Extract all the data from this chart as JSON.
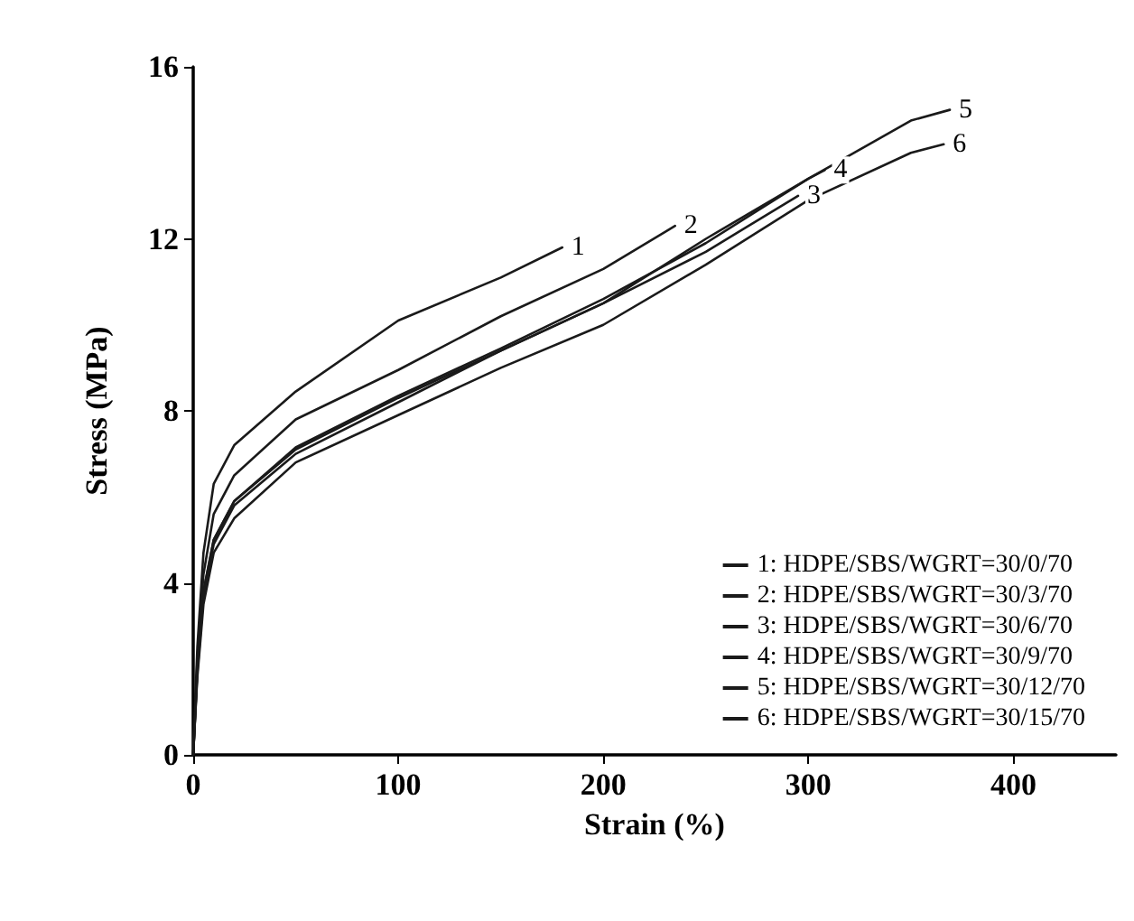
{
  "chart_data": {
    "type": "line",
    "xlabel": "Strain (%)",
    "ylabel": "Stress (MPa)",
    "xlim": [
      0,
      450
    ],
    "ylim": [
      0,
      16
    ],
    "xticks": [
      0,
      100,
      200,
      300,
      400
    ],
    "yticks": [
      0,
      4,
      8,
      12,
      16
    ],
    "grid": false,
    "legend": "bottom right",
    "marker": "none",
    "line_style": "solid",
    "series": [
      {
        "name": "1: HDPE/SBS/WGRT=30/0/70",
        "color": "#1a1a1a",
        "x": [
          0,
          2,
          5,
          10,
          20,
          50,
          100,
          150,
          180
        ],
        "values": [
          0,
          2.5,
          4.7,
          6.3,
          7.2,
          8.45,
          10.1,
          11.1,
          11.8
        ]
      },
      {
        "name": "2: HDPE/SBS/WGRT=30/3/70",
        "color": "#1a1a1a",
        "x": [
          0,
          2,
          5,
          10,
          20,
          50,
          100,
          150,
          200,
          235
        ],
        "values": [
          0,
          2.2,
          4.2,
          5.6,
          6.5,
          7.8,
          8.95,
          10.2,
          11.3,
          12.3
        ]
      },
      {
        "name": "3: HDPE/SBS/WGRT=30/6/70",
        "color": "#1a1a1a",
        "x": [
          0,
          2,
          5,
          10,
          20,
          50,
          100,
          150,
          200,
          250,
          295
        ],
        "values": [
          0,
          2.0,
          3.8,
          5.0,
          5.9,
          7.1,
          8.3,
          9.4,
          10.5,
          11.7,
          13.0
        ]
      },
      {
        "name": "4: HDPE/SBS/WGRT=30/9/70",
        "color": "#1a1a1a",
        "x": [
          0,
          2,
          5,
          10,
          20,
          50,
          100,
          150,
          200,
          250,
          300,
          308
        ],
        "values": [
          0,
          2.0,
          3.8,
          5.0,
          5.9,
          7.15,
          8.35,
          9.45,
          10.6,
          11.9,
          13.4,
          13.6
        ]
      },
      {
        "name": "5: HDPE/SBS/WGRT=30/12/70",
        "color": "#1a1a1a",
        "x": [
          0,
          2,
          5,
          10,
          20,
          50,
          100,
          150,
          200,
          250,
          300,
          350,
          369
        ],
        "values": [
          0,
          1.9,
          3.7,
          4.9,
          5.8,
          7.0,
          8.2,
          9.4,
          10.5,
          12.0,
          13.4,
          14.75,
          15.0
        ]
      },
      {
        "name": "6: HDPE/SBS/WGRT=30/15/70",
        "color": "#1a1a1a",
        "x": [
          0,
          2,
          5,
          10,
          20,
          50,
          100,
          150,
          200,
          250,
          300,
          350,
          366
        ],
        "values": [
          0,
          1.8,
          3.5,
          4.7,
          5.5,
          6.8,
          7.9,
          9.0,
          10.0,
          11.4,
          12.9,
          14.0,
          14.2
        ]
      }
    ],
    "annotations": [
      {
        "text": "1",
        "x": 180,
        "y": 11.8
      },
      {
        "text": "2",
        "x": 235,
        "y": 12.3
      },
      {
        "text": "3",
        "x": 295,
        "y": 13.0
      },
      {
        "text": "4",
        "x": 308,
        "y": 13.6
      },
      {
        "text": "5",
        "x": 369,
        "y": 15.0
      },
      {
        "text": "6",
        "x": 366,
        "y": 14.2
      }
    ]
  }
}
